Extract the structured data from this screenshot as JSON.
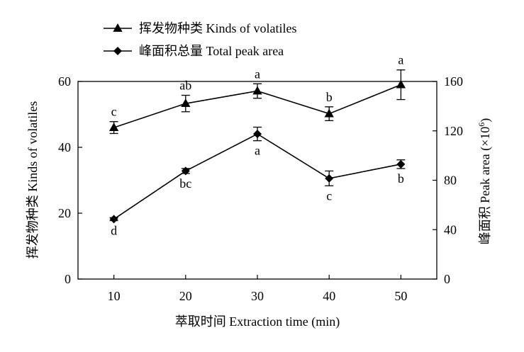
{
  "chart_data": {
    "type": "line",
    "x": [
      10,
      20,
      30,
      40,
      50
    ],
    "xlabel": "萃取时间 Extraction time (min)",
    "ylabel_left": "挥发物种类 Kinds of volatiles",
    "ylabel_right_prefix": "峰面积 Peak area (×10",
    "ylabel_right_exp": "6",
    "ylabel_right_suffix": ")",
    "xticks": [
      "10",
      "20",
      "30",
      "40",
      "50"
    ],
    "yticks_left": [
      "0",
      "20",
      "40",
      "60"
    ],
    "yticks_right": [
      "0",
      "40",
      "80",
      "120",
      "160"
    ],
    "ylim_left": [
      0,
      60
    ],
    "ylim_right": [
      0,
      160
    ],
    "xlim": [
      5,
      55
    ],
    "grid": false,
    "legend_position": "top-left",
    "series": [
      {
        "name": "挥发物种类 Kinds of volatiles",
        "axis": "left",
        "marker": "triangle",
        "values": [
          46,
          53.3,
          57.1,
          50.2,
          59
        ],
        "errors": [
          1.8,
          2.5,
          2.2,
          2.1,
          4.5
        ],
        "labels": [
          "c",
          "ab",
          "a",
          "b",
          "a"
        ]
      },
      {
        "name": "峰面积总量 Total peak area",
        "axis": "right",
        "marker": "diamond",
        "values": [
          48.5,
          87.5,
          117.5,
          81.5,
          93
        ],
        "errors": [
          1.2,
          2.0,
          5.5,
          6.0,
          3.5
        ],
        "labels": [
          "d",
          "bc",
          "a",
          "c",
          "b"
        ]
      }
    ]
  }
}
